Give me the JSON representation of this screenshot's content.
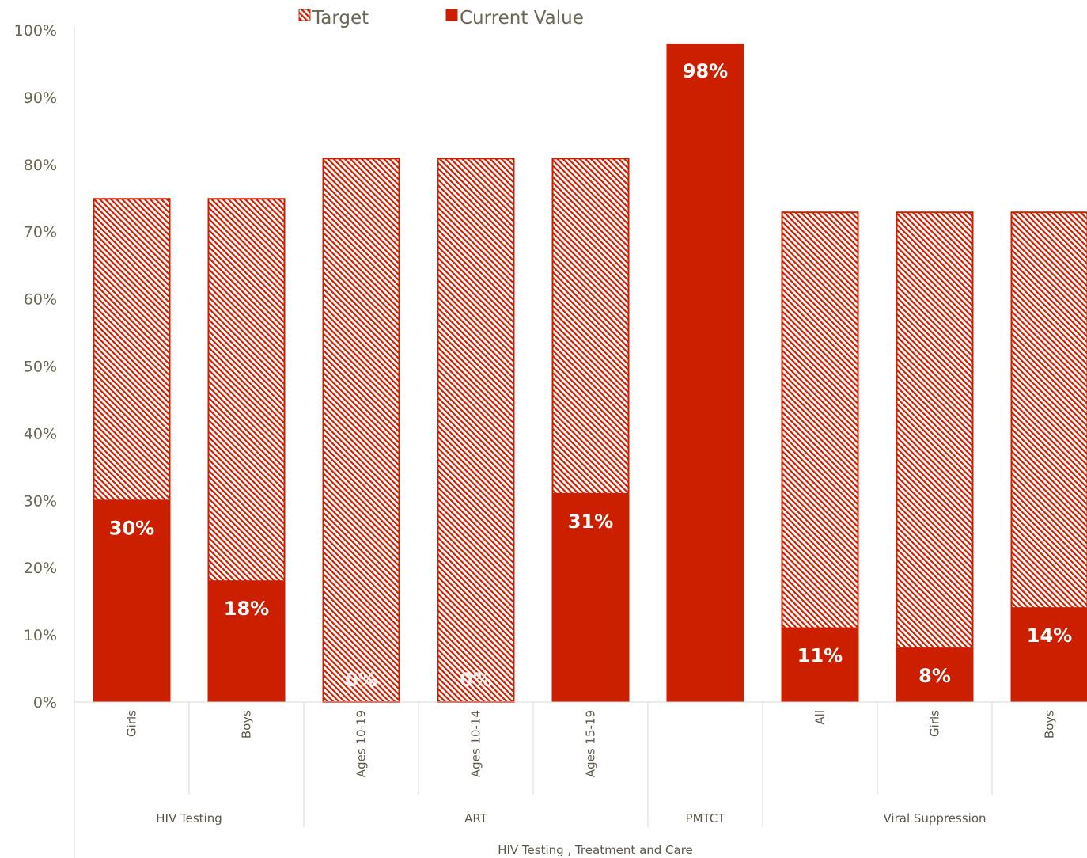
{
  "chart_data": {
    "type": "bar",
    "legend": {
      "position": "top",
      "entries": [
        "Target",
        "Current Value"
      ]
    },
    "colors": {
      "current": "#cc1f00",
      "target_hatch": "#cc1f00",
      "axis_text": "#6b6553",
      "lines": "#d9d9d9"
    },
    "ylim": [
      0,
      100
    ],
    "yticks": [
      "0%",
      "10%",
      "20%",
      "30%",
      "40%",
      "50%",
      "60%",
      "70%",
      "80%",
      "90%",
      "100%"
    ],
    "grid": false,
    "categories": [
      "Girls",
      "Boys",
      "Ages 10-19",
      "Ages 10-14",
      "Ages 15-19",
      "",
      "All",
      "Girls",
      "Boys"
    ],
    "groups": [
      {
        "label": "HIV Testing",
        "count": 2
      },
      {
        "label": "ART",
        "count": 3
      },
      {
        "label": "PMTCT",
        "count": 1
      },
      {
        "label": "Viral Suppression",
        "count": 3
      }
    ],
    "outer_label": "HIV Testing , Treatment and Care",
    "series": [
      {
        "name": "Target",
        "values": [
          75,
          75,
          81,
          81,
          81,
          98,
          73,
          73,
          73
        ]
      },
      {
        "name": "Current Value",
        "values": [
          30,
          18,
          0,
          0,
          31,
          98,
          11,
          8,
          14
        ]
      }
    ],
    "data_labels": [
      "30%",
      "18%",
      "0%",
      "0%",
      "31%",
      "98%",
      "11%",
      "8%",
      "14%"
    ]
  }
}
